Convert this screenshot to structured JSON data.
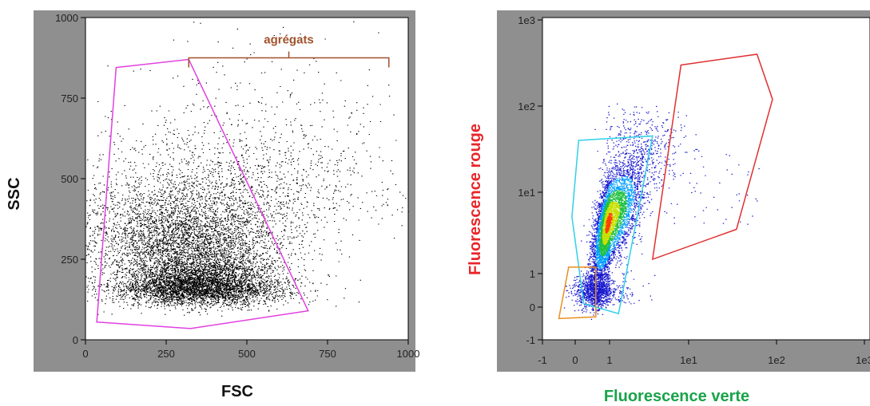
{
  "chart_data": [
    {
      "type": "scatter",
      "title": "",
      "xlabel": "FSC",
      "ylabel": "SSC",
      "xlim": [
        0,
        1000
      ],
      "ylim": [
        0,
        1000
      ],
      "xticks": [
        "0",
        "250",
        "500",
        "750",
        "1000"
      ],
      "yticks": [
        "0",
        "250",
        "500",
        "750",
        "1000"
      ],
      "grid": false,
      "point_color": "#000000",
      "gate_color": "#e040e0",
      "annotation_color": "#a0522d",
      "annotation": {
        "label": "agrégats",
        "x_from": 320,
        "x_to": 940,
        "y": 875
      },
      "gate": [
        [
          95,
          845
        ],
        [
          320,
          870
        ],
        [
          690,
          90
        ],
        [
          325,
          35
        ],
        [
          35,
          55
        ]
      ],
      "populations": [
        {
          "cx": 350,
          "cy": 130,
          "sx": 130,
          "sy": 80,
          "n": 5500
        },
        {
          "cx": 300,
          "cy": 260,
          "sx": 170,
          "sy": 160,
          "n": 3500
        },
        {
          "cx": 560,
          "cy": 380,
          "sx": 230,
          "sy": 250,
          "n": 1000
        }
      ]
    },
    {
      "type": "scatter",
      "title": "",
      "xlabel": "Fluorescence verte",
      "ylabel": "Fluorescence rouge",
      "xlabel_color": "#1aa34a",
      "ylabel_color": "#e8262b",
      "xscale": "log",
      "yscale": "log",
      "xticks": [
        "-1",
        "0",
        "1",
        "1e1",
        "1e2",
        "1e3"
      ],
      "yticks": [
        "-1",
        "0",
        "1",
        "1e1",
        "1e2",
        "1e3"
      ],
      "grid": false,
      "density_colors": [
        "#1a1ad0",
        "#00a0ff",
        "#20c040",
        "#c8e000",
        "#ff4000"
      ],
      "gates": [
        {
          "name": "",
          "color": "#e03030",
          "points": [
            [
              8,
              300
            ],
            [
              60,
              400
            ],
            [
              90,
              120
            ],
            [
              35,
              3.5
            ],
            [
              3.5,
              1.5
            ]
          ]
        },
        {
          "name": "",
          "color": "#30d0e8",
          "points": [
            [
              0.1,
              40
            ],
            [
              3.5,
              45
            ],
            [
              1.3,
              -0.2
            ],
            [
              0.25,
              0.1
            ],
            [
              -0.1,
              5
            ]
          ]
        },
        {
          "name": "",
          "color": "#e89020",
          "points": [
            [
              -0.2,
              1.2
            ],
            [
              0.6,
              1.2
            ],
            [
              0.6,
              -0.3
            ],
            [
              -0.5,
              -0.35
            ]
          ]
        }
      ]
    }
  ]
}
